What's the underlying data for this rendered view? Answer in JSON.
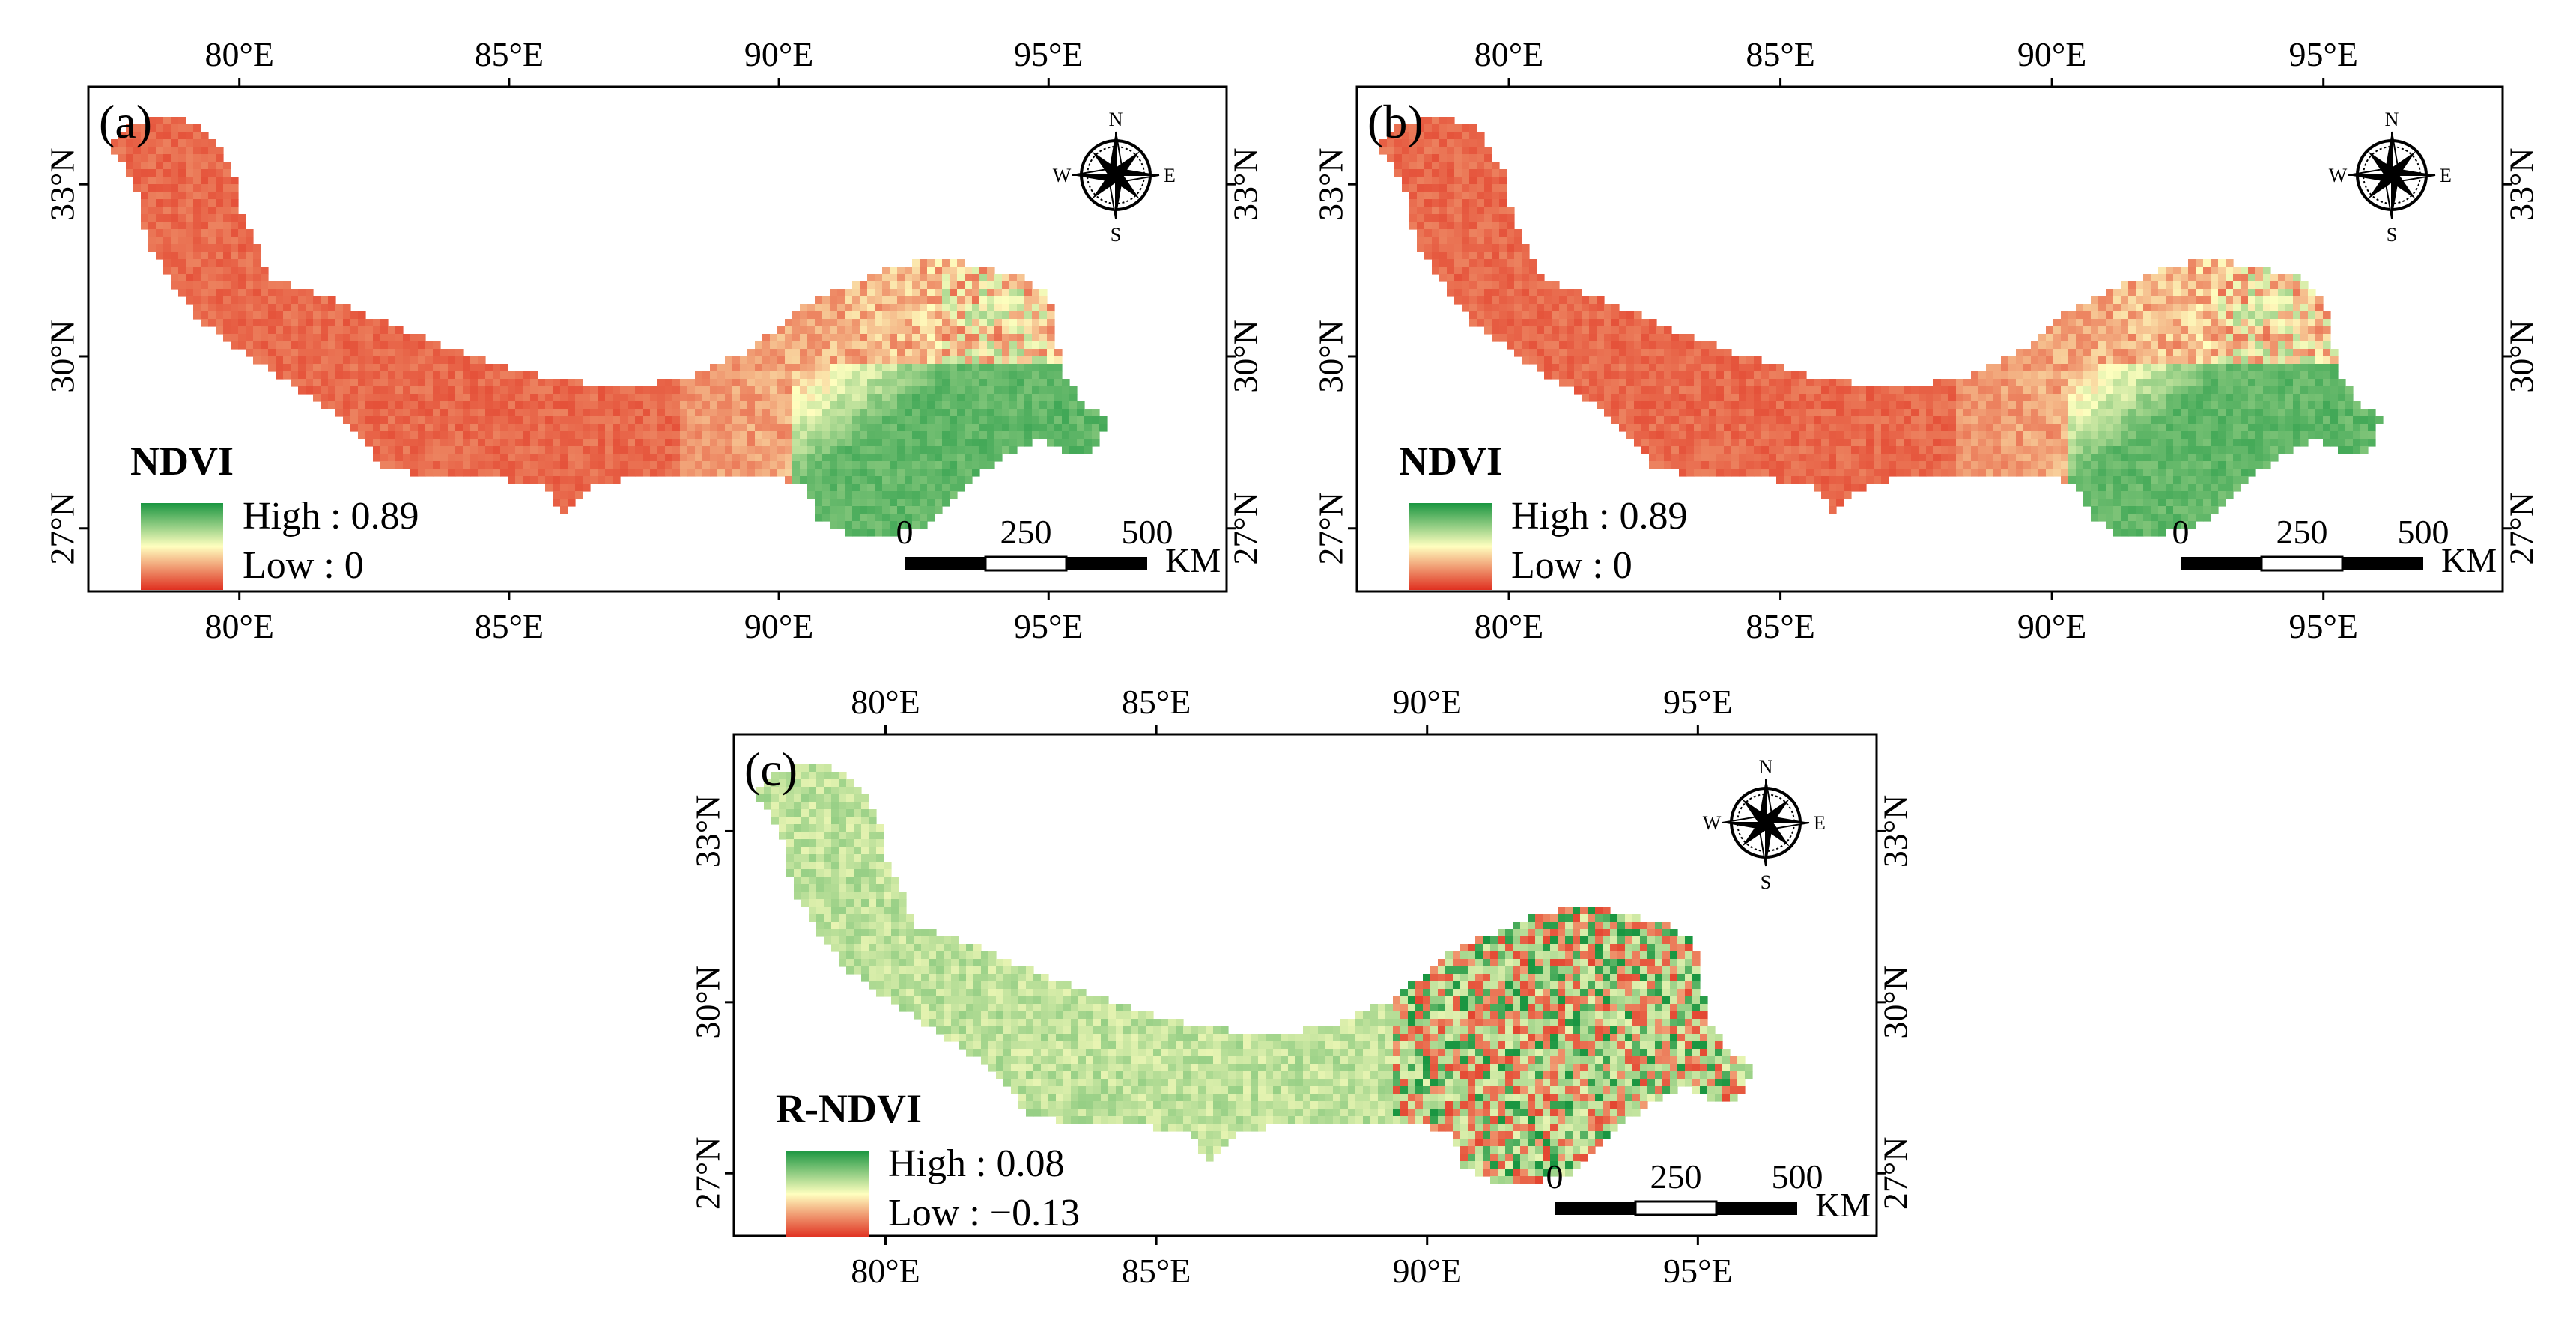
{
  "figure": {
    "panels": [
      {
        "id": "a",
        "label": "(a)",
        "variable": "NDVI",
        "legend": {
          "title": "NDVI",
          "high_label": "High : 0.89",
          "low_label": "Low : 0",
          "high_value": 0.89,
          "low_value": 0,
          "colors": [
            "#1a9641",
            "#ffffbf",
            "#e03020"
          ]
        },
        "fill_pattern": "ndvi"
      },
      {
        "id": "b",
        "label": "(b)",
        "variable": "NDVI",
        "legend": {
          "title": "NDVI",
          "high_label": "High : 0.89",
          "low_label": "Low : 0",
          "high_value": 0.89,
          "low_value": 0,
          "colors": [
            "#1a9641",
            "#ffffbf",
            "#e03020"
          ]
        },
        "fill_pattern": "ndvi"
      },
      {
        "id": "c",
        "label": "(c)",
        "variable": "R-NDVI",
        "legend": {
          "title": "R-NDVI",
          "high_label": "High : 0.08",
          "low_label": "Low : −0.13",
          "high_value": 0.08,
          "low_value": -0.13,
          "colors": [
            "#1a9641",
            "#ffffbf",
            "#e03020"
          ]
        },
        "fill_pattern": "rndvi"
      }
    ],
    "axes": {
      "lon_ticks": [
        {
          "value": 80,
          "label": "80°E"
        },
        {
          "value": 85,
          "label": "85°E"
        },
        {
          "value": 90,
          "label": "90°E"
        },
        {
          "value": 95,
          "label": "95°E"
        }
      ],
      "lat_ticks": [
        {
          "value": 27,
          "label": "27°N"
        },
        {
          "value": 30,
          "label": "30°N"
        },
        {
          "value": 33,
          "label": "33°N"
        }
      ],
      "lon_range": [
        77.2,
        98.3
      ],
      "lat_range": [
        25.9,
        34.7
      ]
    },
    "north_arrow": {
      "n": "N",
      "s": "S",
      "e": "E",
      "w": "W"
    },
    "scale_bar": {
      "ticks": [
        "0",
        "250",
        "500"
      ],
      "unit": "KM"
    },
    "colors": {
      "frame": "#000000",
      "high": "#1a9641",
      "mid": "#ffffbf",
      "low": "#e03020"
    }
  }
}
